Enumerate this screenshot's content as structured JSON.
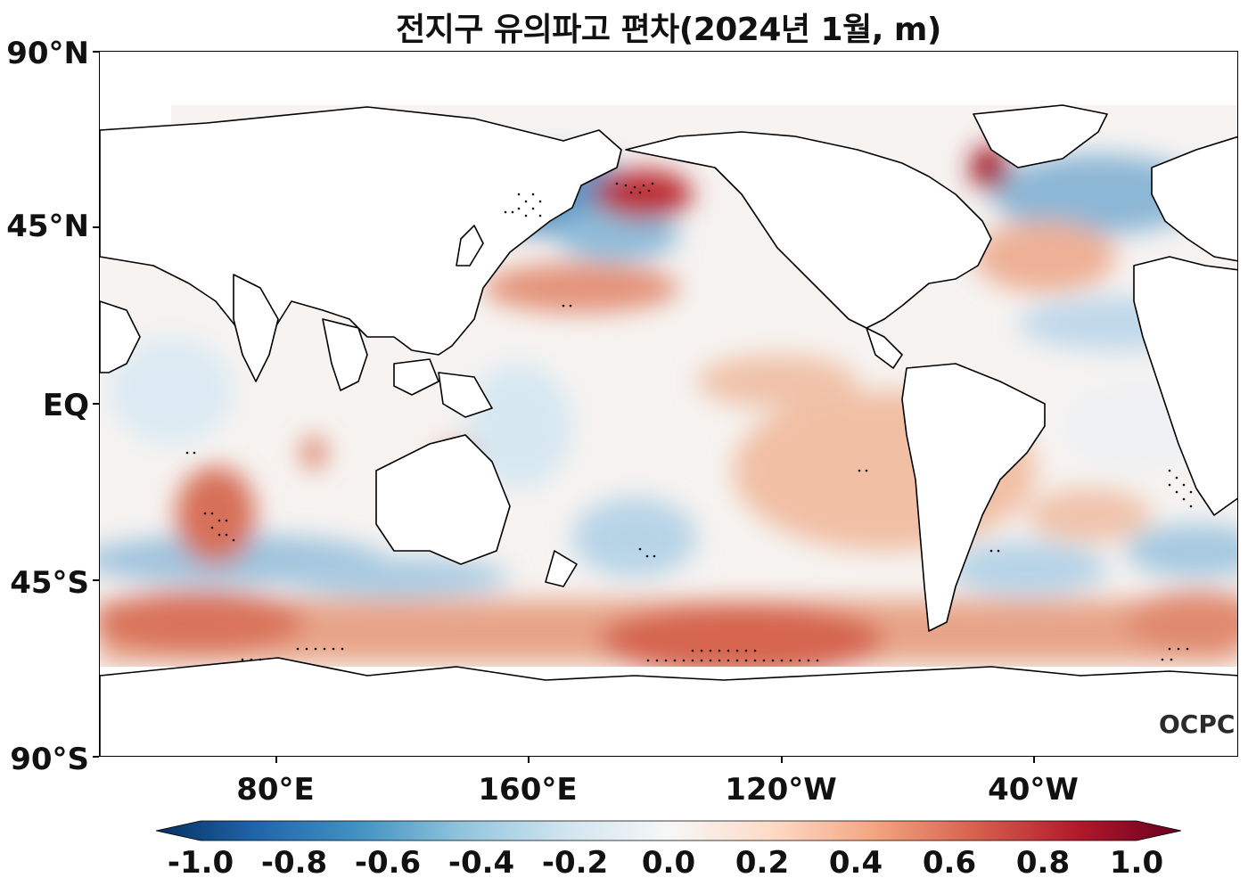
{
  "title": "전지구 유의파고 편차(2024년 1월, m)",
  "logo": "OCPC",
  "y_axis_labels": [
    "90°N",
    "45°N",
    "EQ",
    "45°S",
    "90°S"
  ],
  "x_axis_labels": [
    "80°E",
    "160°E",
    "120°W",
    "40°W"
  ],
  "colorbar": {
    "labels": [
      "-1.0",
      "-0.8",
      "-0.6",
      "-0.4",
      "-0.2",
      "0.0",
      "0.2",
      "0.4",
      "0.6",
      "0.8",
      "1.0"
    ],
    "min": -1.0,
    "max": 1.0,
    "colors": [
      "#053061",
      "#2166ac",
      "#4393c3",
      "#92c5de",
      "#d1e5f0",
      "#f7f7f7",
      "#fddbc7",
      "#f4a582",
      "#d6604d",
      "#b2182b",
      "#67001f"
    ]
  },
  "colors": {
    "land": "#ffffff",
    "coastline": "#000000",
    "significance_dots": "#000000"
  },
  "legend_items": {
    "map_type": "significant wave height anomaly",
    "projection": "equirectangular, Pacific-centered"
  }
}
